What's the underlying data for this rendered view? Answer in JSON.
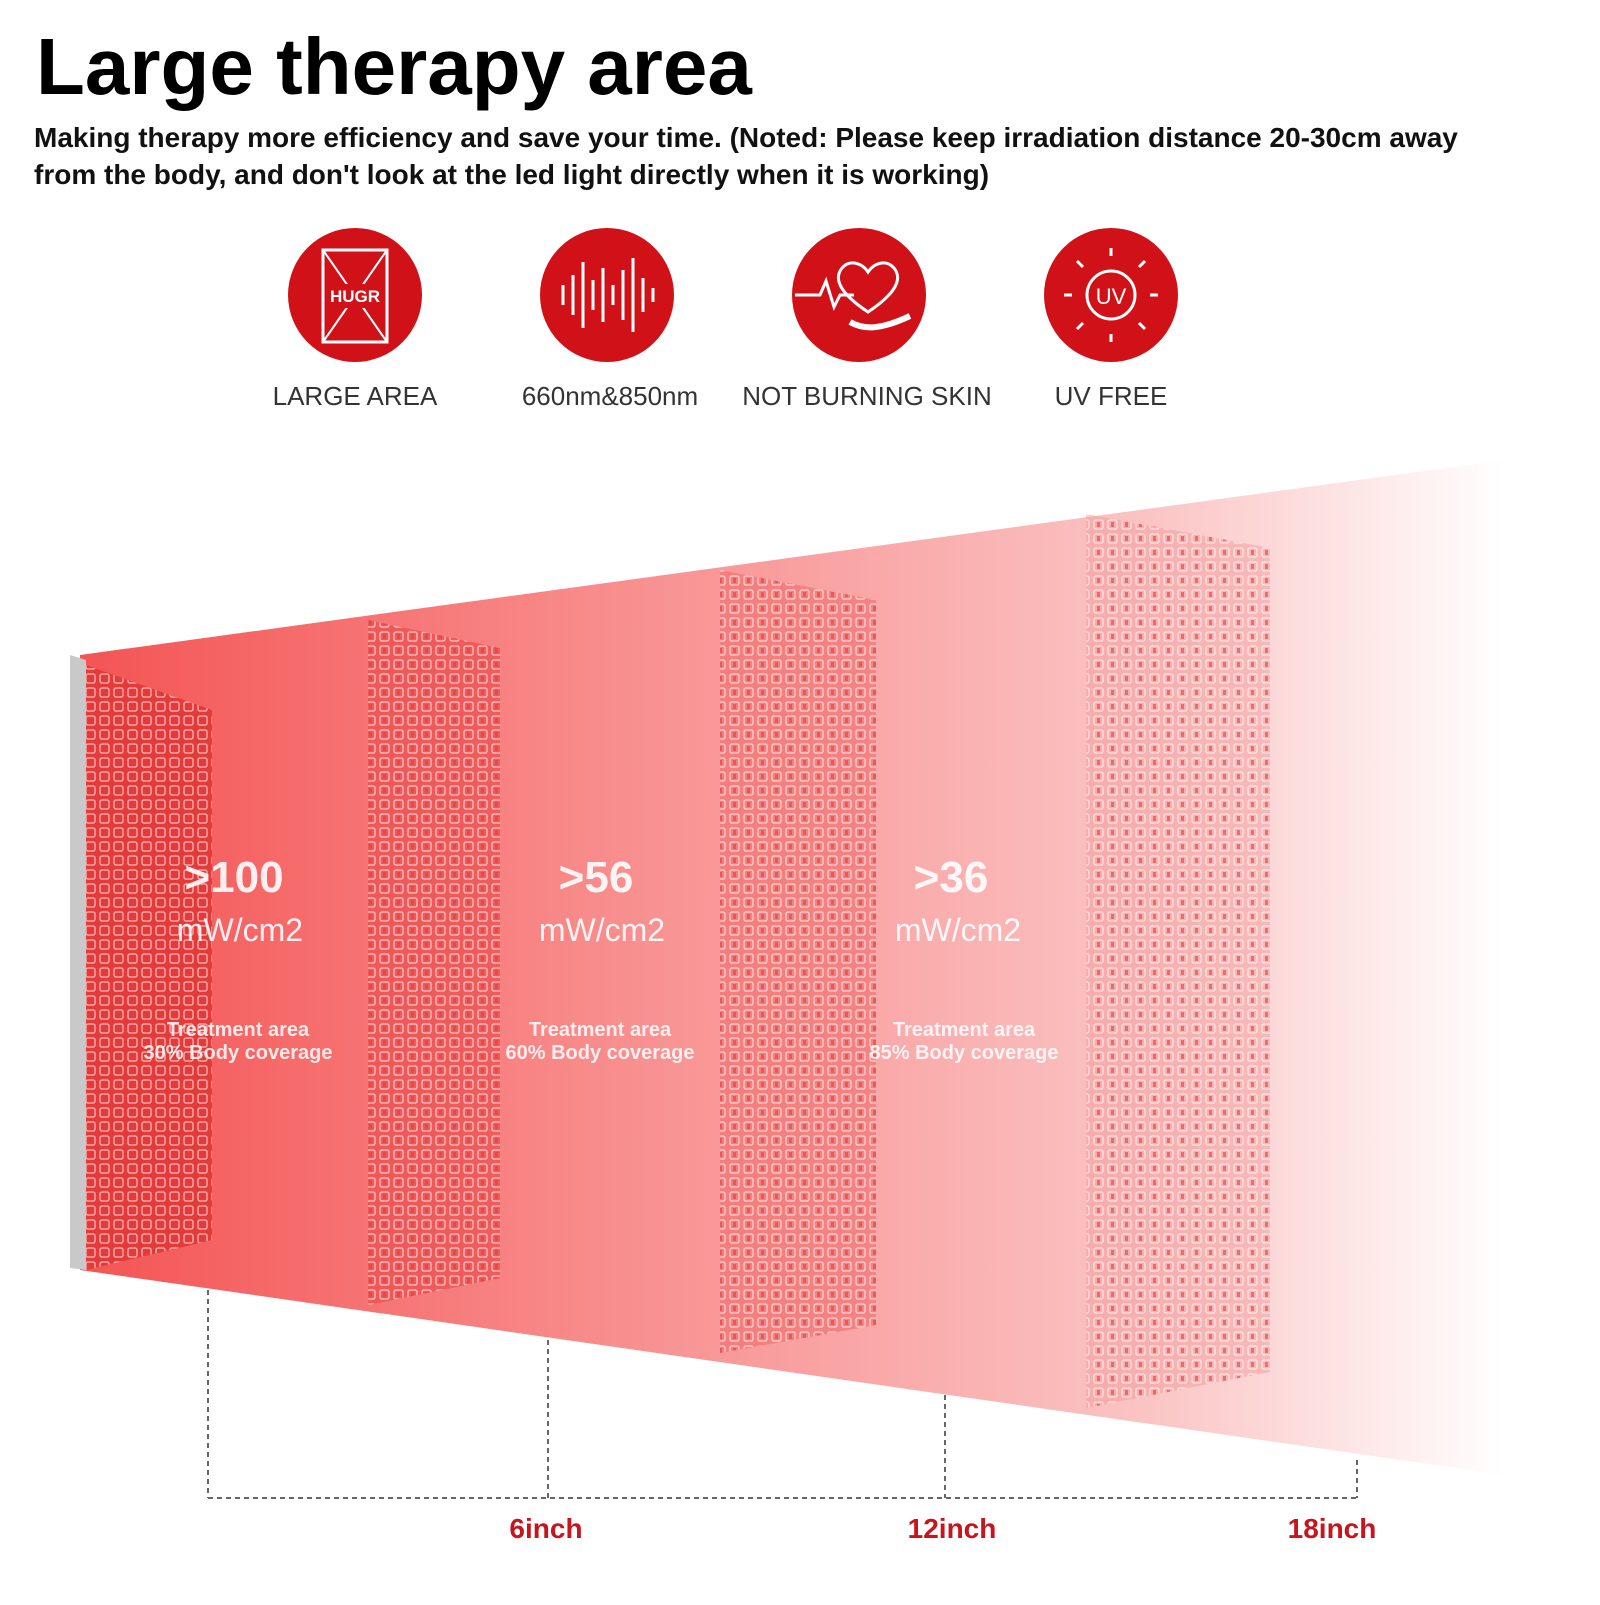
{
  "header": {
    "title": "Large therapy area",
    "subtitle_lines": [
      "Making therapy more efficiency and save your time. (Noted: Please keep irradiation distance 20-30cm away",
      "from the body, and  don't look at the led light directly when it is working)"
    ]
  },
  "features": [
    {
      "icon_text": "HUGR",
      "label": "LARGE AREA"
    },
    {
      "label": "660nm&850nm"
    },
    {
      "label": "NOT BURNING SKIN"
    },
    {
      "icon_text": "UV",
      "label": "UV FREE"
    }
  ],
  "zones": [
    {
      "power": ">100",
      "unit": "mW/cm2",
      "area": "Treatment area",
      "coverage": "30% Body coverage"
    },
    {
      "power": ">56",
      "unit": "mW/cm2",
      "area": "Treatment area",
      "coverage": "60% Body coverage"
    },
    {
      "power": ">36",
      "unit": "mW/cm2",
      "area": "Treatment area",
      "coverage": "85% Body coverage"
    }
  ],
  "distances": [
    "6inch",
    "12inch",
    "18inch"
  ]
}
